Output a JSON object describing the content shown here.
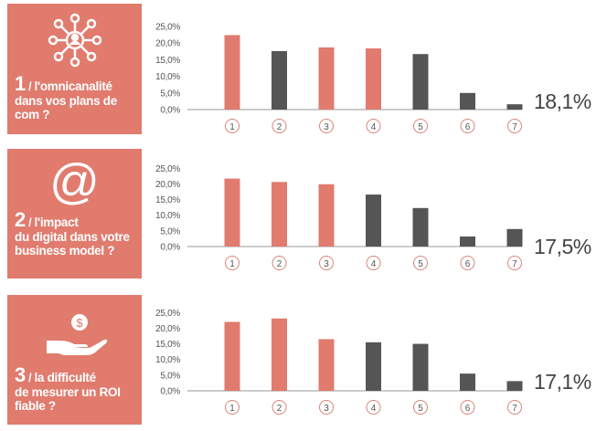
{
  "colors": {
    "panel": "#e07b6e",
    "accent_bar": "#e07b6e",
    "dark_bar": "#555555",
    "axis": "#999999",
    "circle": "#d98478"
  },
  "panels": [
    {
      "icon": "network-person-icon",
      "number": "1",
      "sep": " / ",
      "line1": "l'omnicanalité",
      "rest": "dans vos plans de com ?"
    },
    {
      "icon": "at-sign-icon",
      "number": "2",
      "sep": " / ",
      "line1": "l'impact",
      "rest": "du digital dans votre business model ?"
    },
    {
      "icon": "hand-coin-icon",
      "number": "3",
      "sep": " / ",
      "line1": "la difficulté",
      "rest": "de mesurer un ROI fiable ?"
    }
  ],
  "chart_data": [
    {
      "type": "bar",
      "categories": [
        "1",
        "2",
        "3",
        "4",
        "5",
        "6",
        "7"
      ],
      "values": [
        22.4,
        17.6,
        18.7,
        18.4,
        16.7,
        5.0,
        1.6
      ],
      "highlight": [
        true,
        false,
        true,
        true,
        false,
        false,
        false
      ],
      "ylim": [
        0,
        25
      ],
      "yticks": [
        "0,0%",
        "5,0%",
        "10,0%",
        "15,0%",
        "20,0%",
        "25,0%"
      ],
      "summary": "18,1%",
      "grid": false
    },
    {
      "type": "bar",
      "categories": [
        "1",
        "2",
        "3",
        "4",
        "5",
        "6",
        "7"
      ],
      "values": [
        21.7,
        20.6,
        19.9,
        16.6,
        12.3,
        3.2,
        5.6
      ],
      "highlight": [
        true,
        true,
        true,
        false,
        false,
        false,
        false
      ],
      "ylim": [
        0,
        25
      ],
      "yticks": [
        "0,0%",
        "5,0%",
        "10,0%",
        "15,0%",
        "20,0%",
        "25,0%"
      ],
      "summary": "17,5%",
      "grid": false
    },
    {
      "type": "bar",
      "categories": [
        "1",
        "2",
        "3",
        "4",
        "5",
        "6",
        "7"
      ],
      "values": [
        22.0,
        23.1,
        16.5,
        15.5,
        15.0,
        5.5,
        3.1
      ],
      "highlight": [
        true,
        true,
        true,
        false,
        false,
        false,
        false
      ],
      "ylim": [
        0,
        25
      ],
      "yticks": [
        "0,0%",
        "5,0%",
        "10,0%",
        "15,0%",
        "20,0%",
        "25,0%"
      ],
      "summary": "17,1%",
      "grid": false
    }
  ]
}
